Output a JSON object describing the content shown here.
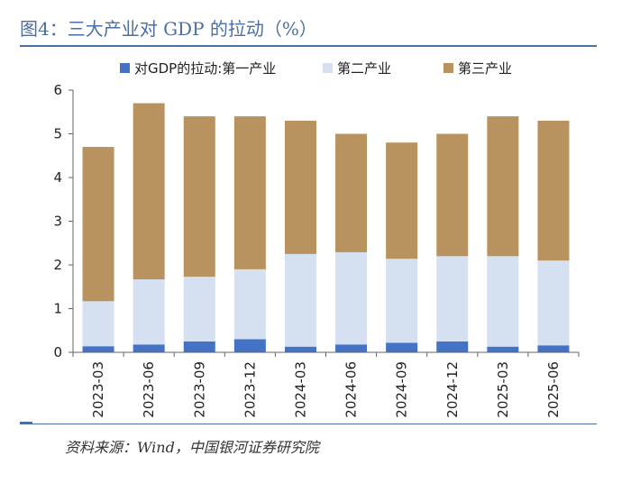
{
  "header": {
    "title": "图4：三大产业对 GDP 的拉动（%）"
  },
  "footer": {
    "source": "资料来源：Wind，中国银河证券研究院"
  },
  "colors": {
    "primary": "#4472c4",
    "secondary": "#d5e0f1",
    "tertiary": "#b8935f",
    "rule": "#4a6fa5"
  },
  "chart_data": {
    "type": "bar",
    "stacked": true,
    "title": "",
    "xlabel": "",
    "ylabel": "",
    "ylim": [
      0,
      6
    ],
    "yticks": [
      0,
      1,
      2,
      3,
      4,
      5,
      6
    ],
    "categories": [
      "2023-03",
      "2023-06",
      "2023-09",
      "2023-12",
      "2024-03",
      "2024-06",
      "2024-09",
      "2024-12",
      "2025-03",
      "2025-06"
    ],
    "series": [
      {
        "name": "对GDP的拉动:第一产业",
        "color": "#4472c4",
        "values": [
          0.14,
          0.18,
          0.25,
          0.3,
          0.13,
          0.18,
          0.22,
          0.25,
          0.13,
          0.16
        ]
      },
      {
        "name": "第二产业",
        "color": "#d5e0f1",
        "values": [
          1.03,
          1.49,
          1.48,
          1.6,
          2.12,
          2.11,
          1.92,
          1.95,
          2.07,
          1.94
        ]
      },
      {
        "name": "第三产业",
        "color": "#b8935f",
        "values": [
          3.53,
          4.03,
          3.67,
          3.5,
          3.05,
          2.71,
          2.66,
          2.8,
          3.2,
          3.2
        ]
      }
    ],
    "legend_position": "top"
  }
}
